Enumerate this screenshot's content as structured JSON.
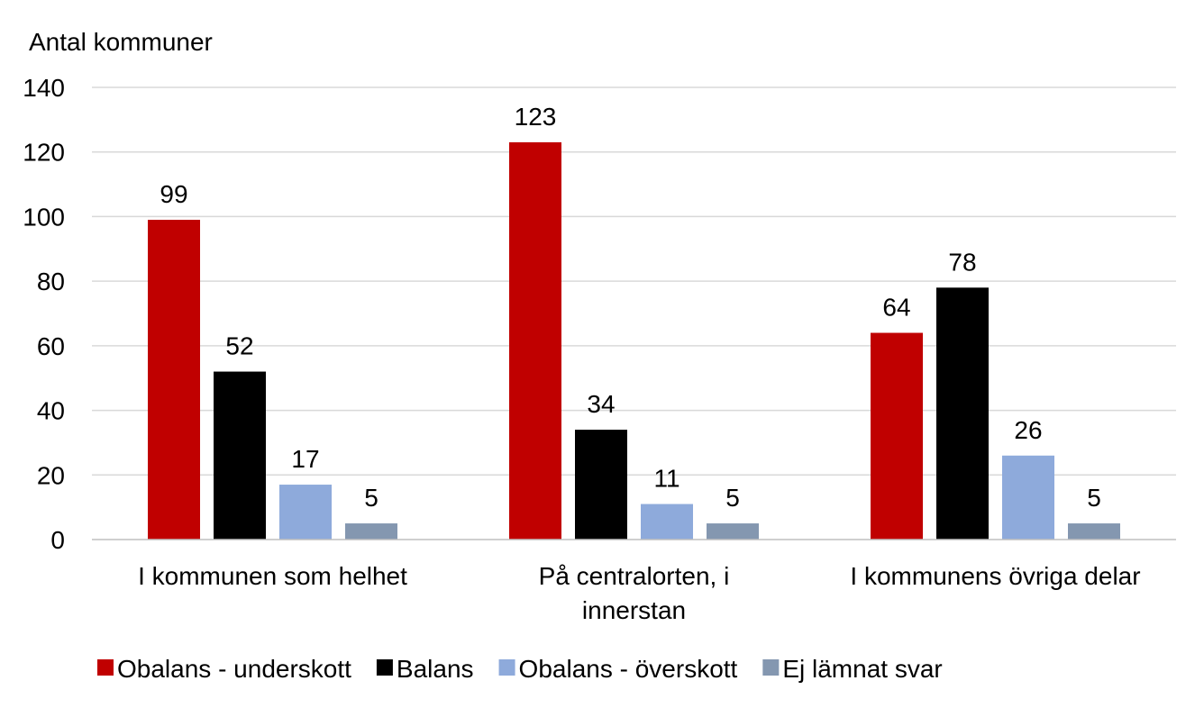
{
  "chart_data": {
    "type": "bar",
    "ylabel": "Antal kommuner",
    "ylim": [
      0,
      140
    ],
    "yticks": [
      0,
      20,
      40,
      60,
      80,
      100,
      120,
      140
    ],
    "grid": true,
    "legend_position": "bottom",
    "categories": [
      [
        "I kommunen som helhet"
      ],
      [
        "På centralorten, i",
        "innerstan"
      ],
      [
        "I kommunens övriga delar"
      ]
    ],
    "series": [
      {
        "name": "Obalans - underskott",
        "color": "#c00000",
        "values": [
          99,
          123,
          64
        ]
      },
      {
        "name": "Balans",
        "color": "#000000",
        "values": [
          52,
          34,
          78
        ]
      },
      {
        "name": "Obalans - överskott",
        "color": "#8eaadb",
        "values": [
          17,
          11,
          26
        ]
      },
      {
        "name": "Ej lämnat svar",
        "color": "#8497b0",
        "values": [
          5,
          5,
          5
        ]
      }
    ]
  }
}
